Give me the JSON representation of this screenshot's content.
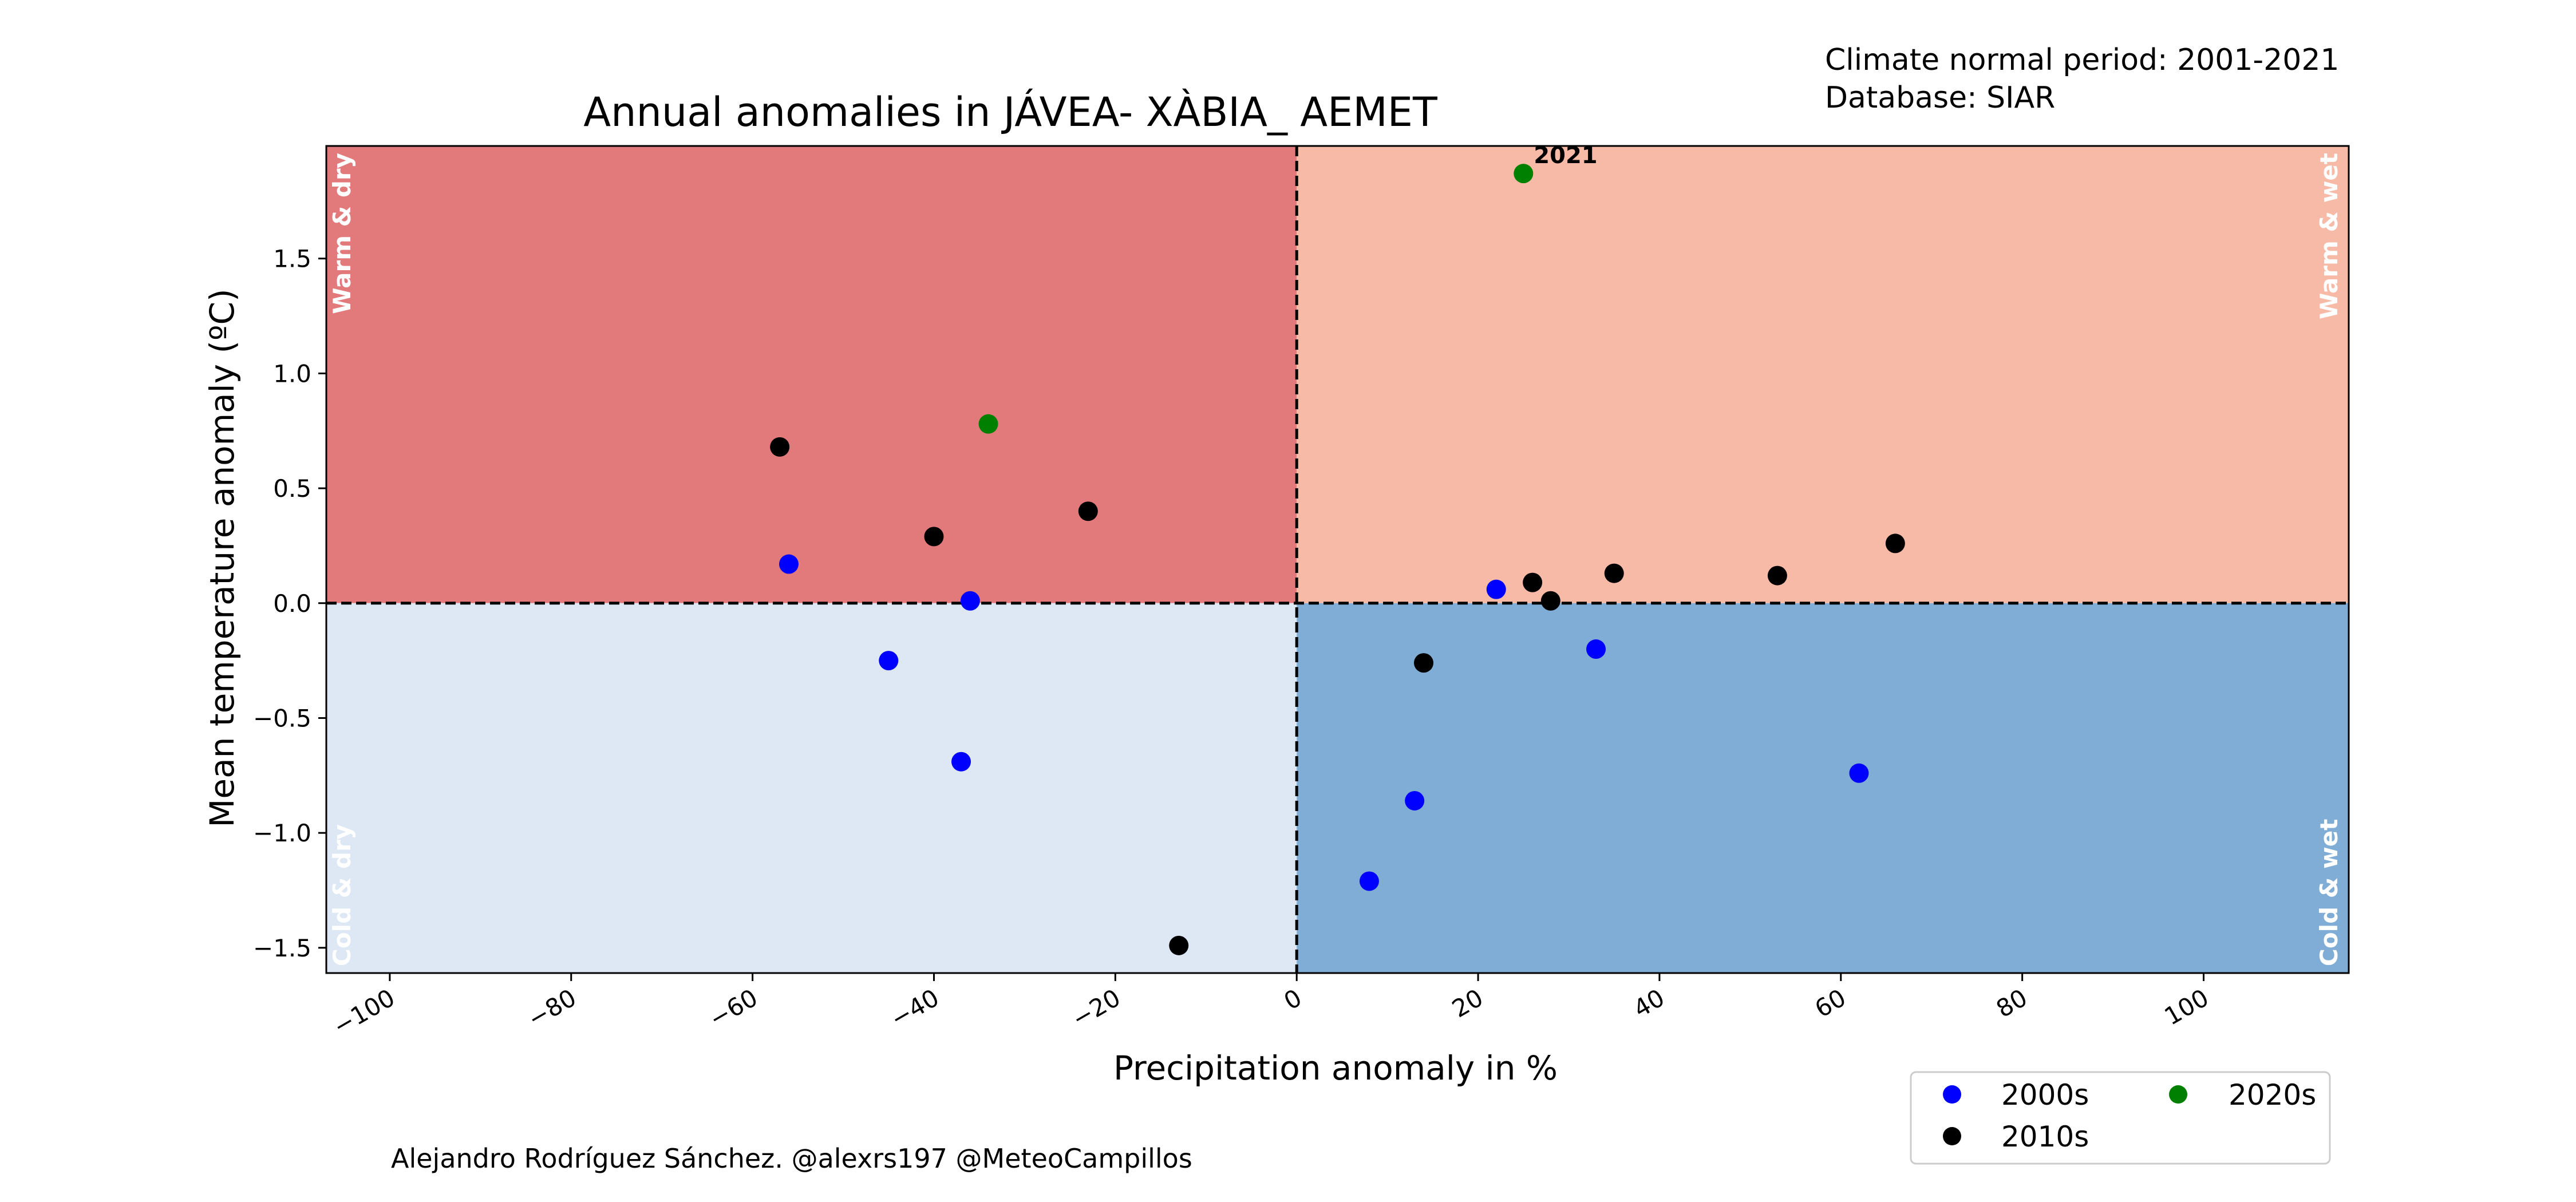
{
  "chart_data": {
    "type": "scatter",
    "title": "Annual anomalies in JÁVEA- XÀBIA_ AEMET",
    "xlabel": "Precipitation anomaly in %",
    "ylabel": "Mean temperature anomaly (ºC)",
    "xlim": [
      -107,
      116
    ],
    "ylim": [
      -1.61,
      1.99
    ],
    "x_ticks": [
      -100,
      -80,
      -60,
      -40,
      -20,
      0,
      20,
      40,
      60,
      80,
      100
    ],
    "x_tick_labels": [
      "−100",
      "−80",
      "−60",
      "−40",
      "−20",
      "0",
      "20",
      "40",
      "60",
      "80",
      "100"
    ],
    "y_ticks": [
      -1.5,
      -1.0,
      -0.5,
      0.0,
      0.5,
      1.0,
      1.5
    ],
    "y_tick_labels": [
      "−1.5",
      "−1.0",
      "−0.5",
      "0.0",
      "0.5",
      "1.0",
      "1.5"
    ],
    "grid": false,
    "quadrants": [
      {
        "label": "Warm & dry",
        "color": "#e27a7c"
      },
      {
        "label": "Warm & wet",
        "color": "#f7baa7"
      },
      {
        "label": "Cold & dry",
        "color": "#dde8f4"
      },
      {
        "label": "Cold & wet",
        "color": "#80add5"
      }
    ],
    "series": [
      {
        "name": "2000s",
        "color": "#0000ff",
        "points": [
          {
            "x": -56,
            "y": 0.17
          },
          {
            "x": -36,
            "y": 0.01
          },
          {
            "x": -45,
            "y": -0.25
          },
          {
            "x": -37,
            "y": -0.69
          },
          {
            "x": 22,
            "y": 0.06
          },
          {
            "x": 33,
            "y": -0.2
          },
          {
            "x": 13,
            "y": -0.86
          },
          {
            "x": 8,
            "y": -1.21
          },
          {
            "x": 62,
            "y": -0.74
          }
        ]
      },
      {
        "name": "2010s",
        "color": "#000000",
        "points": [
          {
            "x": -57,
            "y": 0.68
          },
          {
            "x": -40,
            "y": 0.29
          },
          {
            "x": -23,
            "y": 0.4
          },
          {
            "x": -13,
            "y": -1.49
          },
          {
            "x": 26,
            "y": 0.09
          },
          {
            "x": 28,
            "y": 0.01
          },
          {
            "x": 35,
            "y": 0.13
          },
          {
            "x": 53,
            "y": 0.12
          },
          {
            "x": 66,
            "y": 0.26
          },
          {
            "x": 14,
            "y": -0.26
          }
        ]
      },
      {
        "name": "2020s",
        "color": "#008000",
        "points": [
          {
            "x": -34,
            "y": 0.78
          },
          {
            "x": 25,
            "y": 1.87,
            "label": "2021"
          }
        ]
      }
    ],
    "legend_placement": "lower-right, outside plot"
  },
  "header_info": {
    "line1": "Climate normal period: 2001-2021",
    "line2": "Database: SIAR"
  },
  "credit": "Alejandro Rodríguez Sánchez. @alexrs197 @MeteoCampillos",
  "legend": {
    "entries": [
      {
        "label": "2000s",
        "color": "#0000ff"
      },
      {
        "label": "2020s",
        "color": "#008000"
      },
      {
        "label": "2010s",
        "color": "#000000"
      }
    ]
  }
}
